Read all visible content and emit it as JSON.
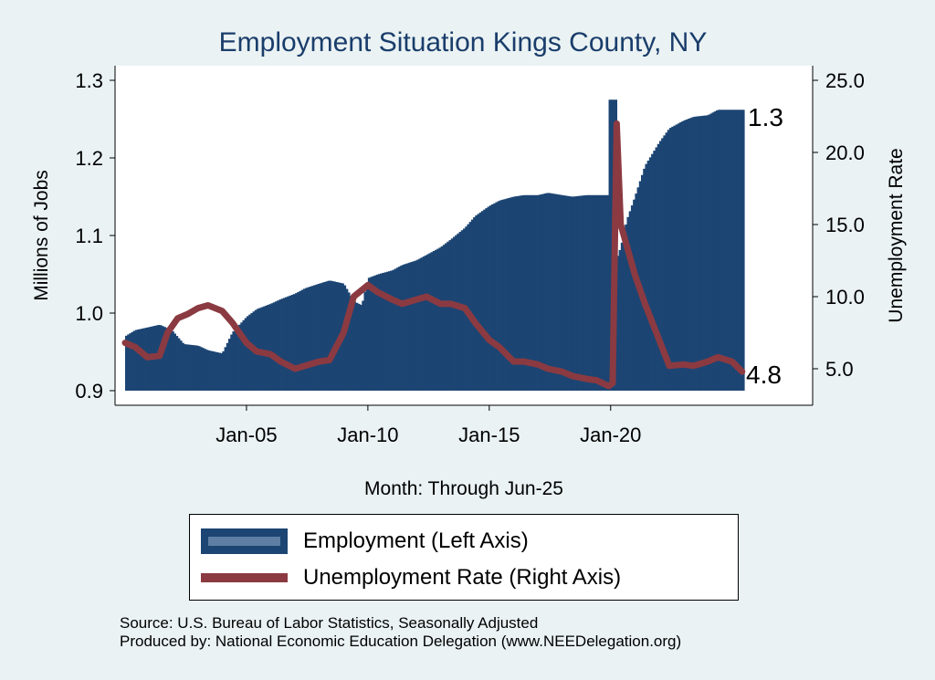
{
  "chart_data": {
    "type": "bar+line",
    "title": "Employment Situation Kings  County, NY",
    "xlabel": "Month: Through Jun-25",
    "ylabel_left": "Millions of Jobs",
    "ylabel_right": "Unemployment Rate",
    "ylim_left": [
      0.9,
      1.3
    ],
    "ylim_right": [
      5.0,
      25.0
    ],
    "y_ticks_left": [
      "0.9",
      "1.0",
      "1.1",
      "1.2",
      "1.3"
    ],
    "y_ticks_right": [
      "5.0",
      "10.0",
      "15.0",
      "20.0",
      "25.0"
    ],
    "x_ticks": [
      "Jan-05",
      "Jan-10",
      "Jan-15",
      "Jan-20"
    ],
    "end_labels": {
      "employment": "1.3",
      "unemployment": "4.8"
    },
    "employment_series": {
      "name": "Employment (Left Axis)",
      "color": "#1c4573",
      "points": [
        [
          "2000-01",
          0.97
        ],
        [
          "2000-06",
          0.978
        ],
        [
          "2001-01",
          0.982
        ],
        [
          "2001-06",
          0.985
        ],
        [
          "2001-12",
          0.978
        ],
        [
          "2002-06",
          0.96
        ],
        [
          "2003-01",
          0.958
        ],
        [
          "2003-06",
          0.952
        ],
        [
          "2004-01",
          0.948
        ],
        [
          "2004-06",
          0.975
        ],
        [
          "2005-01",
          0.995
        ],
        [
          "2005-06",
          1.005
        ],
        [
          "2006-01",
          1.012
        ],
        [
          "2006-06",
          1.018
        ],
        [
          "2007-01",
          1.025
        ],
        [
          "2007-06",
          1.032
        ],
        [
          "2008-01",
          1.038
        ],
        [
          "2008-06",
          1.042
        ],
        [
          "2009-01",
          1.038
        ],
        [
          "2009-06",
          1.015
        ],
        [
          "2009-10",
          1.01
        ],
        [
          "2010-01",
          1.045
        ],
        [
          "2010-06",
          1.05
        ],
        [
          "2011-01",
          1.055
        ],
        [
          "2011-06",
          1.062
        ],
        [
          "2012-01",
          1.068
        ],
        [
          "2012-06",
          1.075
        ],
        [
          "2013-01",
          1.085
        ],
        [
          "2013-06",
          1.095
        ],
        [
          "2014-01",
          1.11
        ],
        [
          "2014-06",
          1.125
        ],
        [
          "2015-01",
          1.138
        ],
        [
          "2015-06",
          1.145
        ],
        [
          "2016-01",
          1.15
        ],
        [
          "2016-06",
          1.152
        ],
        [
          "2017-01",
          1.152
        ],
        [
          "2017-06",
          1.155
        ],
        [
          "2018-01",
          1.152
        ],
        [
          "2018-06",
          1.15
        ],
        [
          "2019-01",
          1.152
        ],
        [
          "2019-06",
          1.152
        ],
        [
          "2019-10",
          1.152
        ],
        [
          "2019-12",
          1.275
        ],
        [
          "2020-03",
          1.275
        ],
        [
          "2020-04",
          1.07
        ],
        [
          "2020-06",
          1.085
        ],
        [
          "2020-09",
          1.12
        ],
        [
          "2021-01",
          1.15
        ],
        [
          "2021-06",
          1.19
        ],
        [
          "2022-01",
          1.22
        ],
        [
          "2022-06",
          1.238
        ],
        [
          "2023-01",
          1.248
        ],
        [
          "2023-06",
          1.253
        ],
        [
          "2024-01",
          1.255
        ],
        [
          "2024-06",
          1.262
        ],
        [
          "2025-06",
          1.262
        ]
      ]
    },
    "unemployment_series": {
      "name": "Unemployment Rate (Right Axis)",
      "color": "#8b3a41",
      "points": [
        [
          "2000-01",
          6.8
        ],
        [
          "2000-06",
          6.5
        ],
        [
          "2000-12",
          5.8
        ],
        [
          "2001-06",
          5.9
        ],
        [
          "2001-10",
          7.5
        ],
        [
          "2002-03",
          8.5
        ],
        [
          "2002-08",
          8.8
        ],
        [
          "2003-01",
          9.2
        ],
        [
          "2003-06",
          9.4
        ],
        [
          "2004-01",
          9.0
        ],
        [
          "2004-06",
          8.2
        ],
        [
          "2005-01",
          6.8
        ],
        [
          "2005-06",
          6.2
        ],
        [
          "2006-01",
          6.0
        ],
        [
          "2006-06",
          5.5
        ],
        [
          "2007-01",
          5.0
        ],
        [
          "2007-06",
          5.2
        ],
        [
          "2008-01",
          5.5
        ],
        [
          "2008-06",
          5.6
        ],
        [
          "2009-01",
          7.5
        ],
        [
          "2009-06",
          10.0
        ],
        [
          "2010-01",
          10.8
        ],
        [
          "2010-06",
          10.3
        ],
        [
          "2011-01",
          9.8
        ],
        [
          "2011-06",
          9.5
        ],
        [
          "2012-01",
          9.8
        ],
        [
          "2012-06",
          10.0
        ],
        [
          "2013-01",
          9.5
        ],
        [
          "2013-06",
          9.5
        ],
        [
          "2014-01",
          9.2
        ],
        [
          "2014-06",
          8.2
        ],
        [
          "2015-01",
          7.0
        ],
        [
          "2015-06",
          6.5
        ],
        [
          "2016-01",
          5.5
        ],
        [
          "2016-06",
          5.5
        ],
        [
          "2017-01",
          5.3
        ],
        [
          "2017-06",
          5.0
        ],
        [
          "2018-01",
          4.8
        ],
        [
          "2018-06",
          4.5
        ],
        [
          "2019-01",
          4.3
        ],
        [
          "2019-06",
          4.2
        ],
        [
          "2019-12",
          3.8
        ],
        [
          "2020-02",
          4.0
        ],
        [
          "2020-04",
          22.0
        ],
        [
          "2020-06",
          15.0
        ],
        [
          "2020-09",
          13.5
        ],
        [
          "2021-01",
          11.5
        ],
        [
          "2021-06",
          9.5
        ],
        [
          "2022-01",
          7.0
        ],
        [
          "2022-06",
          5.2
        ],
        [
          "2023-01",
          5.3
        ],
        [
          "2023-06",
          5.2
        ],
        [
          "2024-01",
          5.5
        ],
        [
          "2024-06",
          5.8
        ],
        [
          "2025-01",
          5.5
        ],
        [
          "2025-06",
          4.8
        ]
      ]
    },
    "grid": false,
    "legend_position": "bottom"
  },
  "legend": {
    "employment_label": "Employment (Left Axis)",
    "unemployment_label": "Unemployment Rate (Right Axis)"
  },
  "source": {
    "line1": "Source: U.S. Bureau of Labor Statistics, Seasonally Adjusted",
    "line2": "Produced by: National Economic Education Delegation (www.NEEDelegation.org)"
  },
  "colors": {
    "background": "#eaf2f3",
    "plot_background": "#ffffff",
    "title": "#1a3d6b",
    "employment": "#1c4573",
    "unemployment": "#8b3a41"
  }
}
